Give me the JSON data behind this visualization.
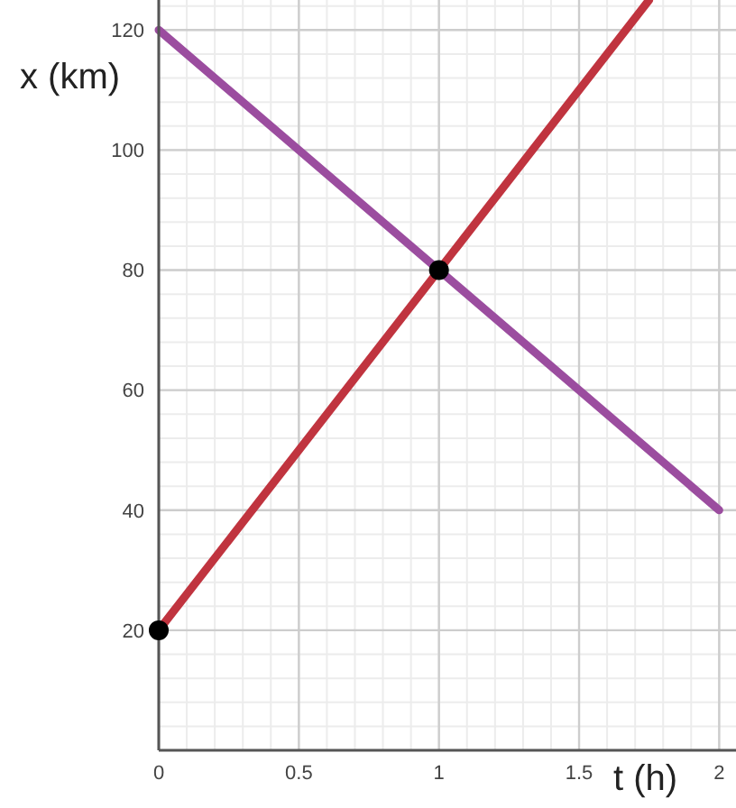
{
  "chart_data": {
    "type": "line",
    "xlabel": "t (h)",
    "ylabel": "x (km)",
    "xlim": [
      0,
      2.06
    ],
    "xticks": [
      0,
      0.5,
      1,
      1.5,
      2
    ],
    "ylim": [
      0,
      125
    ],
    "yticks": [
      20,
      40,
      60,
      80,
      100,
      120
    ],
    "grid": true,
    "series": [
      {
        "color": "#c0343f",
        "x": [
          0,
          1.75
        ],
        "values": [
          20,
          125
        ]
      },
      {
        "color": "#9b4d9f",
        "x": [
          0,
          2
        ],
        "values": [
          120,
          40
        ]
      },
      {
        "type": "scatter",
        "color": "#000000",
        "x": [
          0,
          1
        ],
        "values": [
          20,
          80
        ]
      }
    ]
  }
}
